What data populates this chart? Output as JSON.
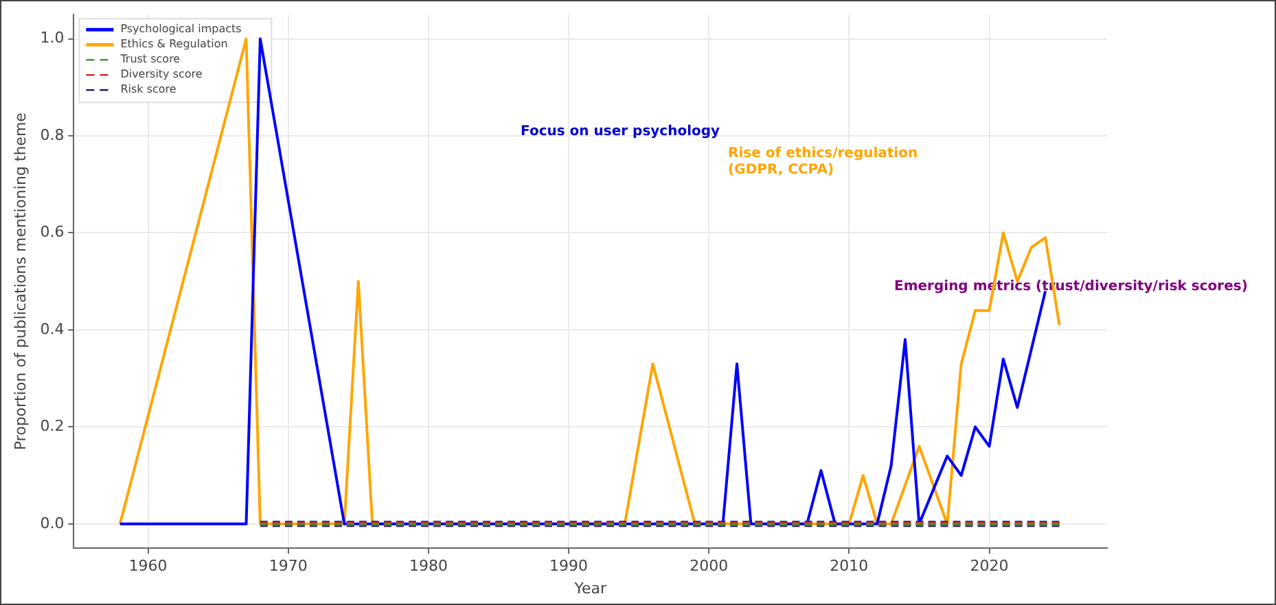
{
  "chart_data": {
    "type": "line",
    "xlabel": "Year",
    "ylabel": "Proportion of publications mentioning theme",
    "xlim": [
      1954.7,
      2028.4
    ],
    "ylim": [
      -0.05,
      1.05
    ],
    "xticks": [
      1960,
      1970,
      1980,
      1990,
      2000,
      2010,
      2020
    ],
    "yticks": [
      {
        "value": 0,
        "label": "0.0"
      },
      {
        "value": 0.2,
        "label": "0.2"
      },
      {
        "value": 0.4,
        "label": "0.4"
      },
      {
        "value": 0.6,
        "label": "0.6"
      },
      {
        "value": 0.8,
        "label": "0.8"
      },
      {
        "value": 1,
        "label": "1.0"
      }
    ],
    "grid": true,
    "legend": "top left",
    "marker": "none",
    "series": [
      {
        "name": "Psychological impacts",
        "color": "#0000ff",
        "line_style": "solid",
        "x": [
          1958,
          1967,
          1968,
          1974,
          2001,
          2002,
          2003,
          2007,
          2008,
          2009,
          2012,
          2013,
          2014,
          2015,
          2017,
          2018,
          2019,
          2020,
          2021,
          2022,
          2023,
          2024
        ],
        "values": [
          0,
          0,
          1.0,
          0,
          0,
          0.33,
          0,
          0,
          0.11,
          0,
          0,
          0.12,
          0.38,
          0,
          0.14,
          0.1,
          0.2,
          0.16,
          0.34,
          0.24,
          0.36,
          0.48
        ]
      },
      {
        "name": "Ethics & Regulation",
        "color": "#ffa500",
        "line_style": "solid",
        "x": [
          1958,
          1967,
          1968,
          1974,
          1975,
          1976,
          1994,
          1996,
          1999,
          2010,
          2011,
          2012,
          2013,
          2015,
          2017,
          2018,
          2019,
          2020,
          2021,
          2022,
          2023,
          2024,
          2025
        ],
        "values": [
          0,
          1.0,
          0,
          0,
          0.5,
          0,
          0,
          0.33,
          0,
          0,
          0.1,
          0,
          0,
          0.16,
          0,
          0.33,
          0.44,
          0.44,
          0.6,
          0.5,
          0.57,
          0.59,
          0.41
        ]
      },
      {
        "name": "Trust score",
        "color": "#2ca02c",
        "line_style": "dashed",
        "x": [
          1968,
          2025
        ],
        "values": [
          0,
          0
        ]
      },
      {
        "name": "Diversity score",
        "color": "#d62728",
        "line_style": "dashed",
        "x": [
          1968,
          2025
        ],
        "values": [
          0,
          0
        ]
      },
      {
        "name": "Risk score",
        "color": "#1f1f7a",
        "line_style": "dashed",
        "x": [
          1968,
          2025
        ],
        "values": [
          0,
          0
        ]
      }
    ],
    "annotations": [
      "Focus on user psychology",
      "Rise of ethics/regulation\n(GDPR, CCPA)",
      "Emerging metrics (trust/diversity/risk scores)"
    ]
  }
}
